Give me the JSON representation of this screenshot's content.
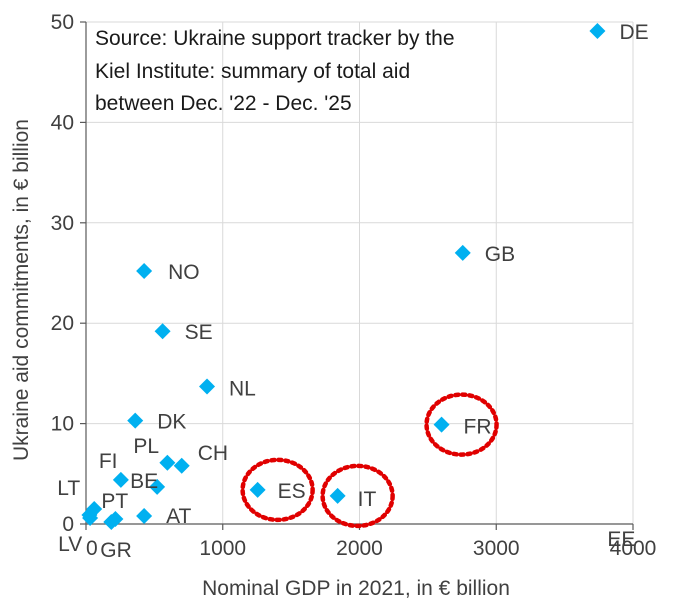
{
  "chart_data": {
    "type": "scatter",
    "annotation_lines": [
      "Source: Ukraine support tracker by the",
      "Kiel Institute: summary of total aid",
      "between Dec. '22 - Dec. '25"
    ],
    "xlabel": "Nominal GDP in 2021, in € billion",
    "ylabel": "Ukraine aid commitments, in € billion",
    "xlim": [
      0,
      4000
    ],
    "ylim": [
      0,
      50
    ],
    "x_ticks": [
      0,
      1000,
      2000,
      3000,
      4000
    ],
    "y_ticks": [
      0,
      10,
      20,
      30,
      40,
      50
    ],
    "grid": "both",
    "marker": "diamond",
    "marker_color": "#00B0F0",
    "highlight_color": "#E00000",
    "points": [
      {
        "label": "DE",
        "x": 3740,
        "y": 49.1
      },
      {
        "label": "GB",
        "x": 2755,
        "y": 27.0
      },
      {
        "label": "FR",
        "x": 2600,
        "y": 9.9,
        "highlighted": true
      },
      {
        "label": "IT",
        "x": 1840,
        "y": 2.8,
        "highlighted": true
      },
      {
        "label": "ES",
        "x": 1255,
        "y": 3.4,
        "highlighted": true
      },
      {
        "label": "NO",
        "x": 425,
        "y": 25.2
      },
      {
        "label": "SE",
        "x": 560,
        "y": 19.2
      },
      {
        "label": "NL",
        "x": 885,
        "y": 13.7
      },
      {
        "label": "DK",
        "x": 360,
        "y": 10.3
      },
      {
        "label": "PL",
        "x": 595,
        "y": 6.1
      },
      {
        "label": "CH",
        "x": 700,
        "y": 5.8
      },
      {
        "label": "BE",
        "x": 520,
        "y": 3.7
      },
      {
        "label": "FI",
        "x": 255,
        "y": 4.4
      },
      {
        "label": "AT",
        "x": 425,
        "y": 0.8
      },
      {
        "label": "PT",
        "x": 215,
        "y": 0.5
      },
      {
        "label": "GR",
        "x": 185,
        "y": 0.2
      },
      {
        "label": "LT",
        "x": 60,
        "y": 1.5
      },
      {
        "label": "LV",
        "x": 30,
        "y": 0.6
      },
      {
        "label": "EE",
        "x": 25,
        "y": 0.9
      }
    ]
  }
}
